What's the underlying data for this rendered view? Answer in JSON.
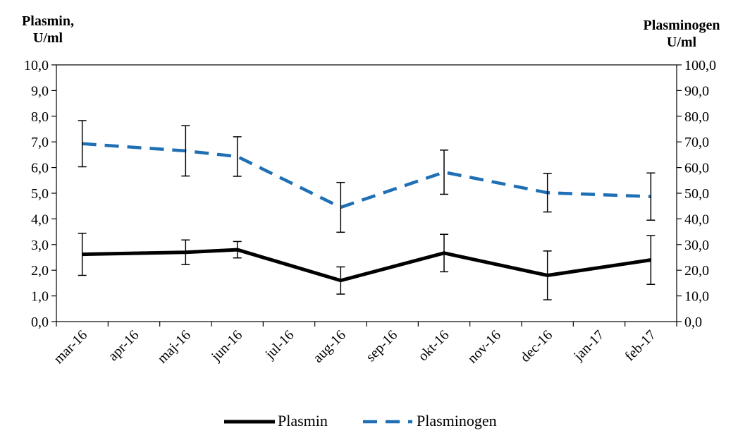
{
  "chart_data": {
    "type": "line",
    "categories": [
      "mar-16",
      "apr-16",
      "maj-16",
      "jun-16",
      "jul-16",
      "aug-16",
      "sep-16",
      "okt-16",
      "nov-16",
      "dec-16",
      "jan-17",
      "feb-17"
    ],
    "y_left": {
      "label_line1": "Plasmin,",
      "label_line2": "U/ml",
      "range": [
        0,
        10
      ],
      "ticks": [
        "0,0",
        "1,0",
        "2,0",
        "3,0",
        "4,0",
        "5,0",
        "6,0",
        "7,0",
        "8,0",
        "9,0",
        "10,0"
      ]
    },
    "y_right": {
      "label_line1": "Plasminogen",
      "label_line2": "U/ml",
      "range": [
        0,
        100
      ],
      "ticks": [
        "0,0",
        "10,0",
        "20,0",
        "30,0",
        "40,0",
        "50,0",
        "60,0",
        "70,0",
        "80,0",
        "90,0",
        "100,0"
      ]
    },
    "series": [
      {
        "name": "Plasmin",
        "axis": "left",
        "color": "#000000",
        "style": "solid",
        "points": [
          {
            "x": "mar-16",
            "y": 2.62,
            "err": 0.82
          },
          {
            "x": "maj-16",
            "y": 2.7,
            "err": 0.48
          },
          {
            "x": "jun-16",
            "y": 2.8,
            "err": 0.32
          },
          {
            "x": "aug-16",
            "y": 1.6,
            "err": 0.53
          },
          {
            "x": "okt-16",
            "y": 2.67,
            "err": 0.73
          },
          {
            "x": "dec-16",
            "y": 1.8,
            "err": 0.95
          },
          {
            "x": "feb-17",
            "y": 2.4,
            "err": 0.95
          }
        ]
      },
      {
        "name": "Plasminogen",
        "axis": "right",
        "color": "#1f6fb5",
        "style": "dashed",
        "points": [
          {
            "x": "mar-16",
            "y": 69.3,
            "err": 9.0
          },
          {
            "x": "maj-16",
            "y": 66.5,
            "err": 9.8
          },
          {
            "x": "jun-16",
            "y": 64.3,
            "err": 7.7
          },
          {
            "x": "aug-16",
            "y": 44.5,
            "err": 9.7
          },
          {
            "x": "okt-16",
            "y": 58.2,
            "err": 8.6
          },
          {
            "x": "dec-16",
            "y": 50.2,
            "err": 7.5
          },
          {
            "x": "feb-17",
            "y": 48.7,
            "err": 9.2
          }
        ]
      }
    ],
    "legend_position": "bottom",
    "grid": false
  }
}
